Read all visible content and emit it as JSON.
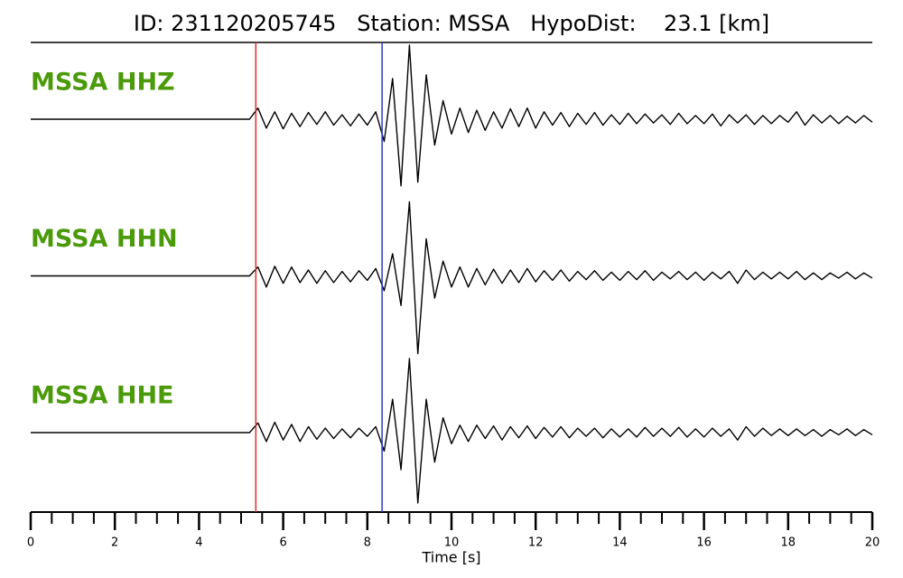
{
  "chart_data": {
    "type": "seismogram",
    "title": "ID: 231120205745   Station: MSSA   HypoDist:    23.1 [km]",
    "xlabel": "Time [s]",
    "xlim": [
      0,
      20
    ],
    "xticks": [
      0,
      2,
      4,
      6,
      8,
      10,
      12,
      14,
      16,
      18,
      20
    ],
    "xticks_minor": [
      0.5,
      1,
      1.5,
      2.5,
      3,
      3.5,
      4.5,
      5,
      5.5,
      6.5,
      7,
      7.5,
      8.5,
      9,
      9.5,
      10.5,
      11,
      11.5,
      12.5,
      13,
      13.5,
      14.5,
      15,
      15.5,
      16.5,
      17,
      17.5,
      18.5,
      19,
      19.5
    ],
    "picks": [
      {
        "value": 5.35,
        "color": "#e8262a"
      },
      {
        "value": 8.35,
        "color": "#2a3bcc"
      }
    ],
    "t0": 0,
    "dt": 0.2,
    "color": "#000000",
    "label_color": "#4b9a0a",
    "series": [
      {
        "name": "MSSA HHZ",
        "values": [
          0,
          0,
          0,
          0,
          0,
          0,
          0,
          0,
          0,
          0,
          0,
          0,
          0,
          0,
          0,
          0,
          0,
          0,
          0,
          0,
          0,
          0,
          0,
          0,
          0,
          0,
          0,
          0.15,
          -0.12,
          0.1,
          -0.13,
          0.08,
          -0.1,
          0.09,
          -0.07,
          0.1,
          -0.08,
          0.06,
          -0.09,
          0.07,
          -0.08,
          0.1,
          -0.3,
          0.55,
          -0.9,
          1,
          -0.85,
          0.6,
          -0.35,
          0.25,
          -0.2,
          0.15,
          -0.18,
          0.12,
          -0.15,
          0.1,
          -0.12,
          0.14,
          -0.1,
          0.15,
          -0.12,
          0.1,
          -0.08,
          0.09,
          -0.1,
          0.08,
          -0.07,
          0.09,
          -0.08,
          0.06,
          -0.07,
          0.08,
          -0.06,
          0.07,
          -0.05,
          0.06,
          -0.07,
          0.08,
          -0.06,
          0.05,
          -0.06,
          0.07,
          -0.09,
          0.06,
          -0.05,
          0.06,
          -0.07,
          0.05,
          -0.06,
          0.05,
          -0.04,
          0.1,
          -0.08,
          0.06,
          -0.05,
          0.05,
          -0.06,
          0.04,
          -0.05,
          0.05,
          -0.04
        ]
      },
      {
        "name": "MSSA HHN",
        "values": [
          0,
          0,
          0,
          0,
          0,
          0,
          0,
          0,
          0,
          0,
          0,
          0,
          0,
          0,
          0,
          0,
          0,
          0,
          0,
          0,
          0,
          0,
          0,
          0,
          0,
          0,
          0,
          0.12,
          -0.15,
          0.13,
          -0.1,
          0.12,
          -0.09,
          0.08,
          -0.1,
          0.07,
          -0.09,
          0.06,
          -0.08,
          0.07,
          -0.06,
          0.1,
          -0.2,
          0.3,
          -0.4,
          1,
          -1.05,
          0.5,
          -0.3,
          0.2,
          -0.15,
          0.12,
          -0.15,
          0.1,
          -0.12,
          0.09,
          -0.1,
          0.08,
          -0.09,
          0.1,
          -0.08,
          0.07,
          -0.06,
          0.08,
          -0.07,
          0.06,
          -0.05,
          0.07,
          -0.06,
          0.05,
          -0.06,
          0.06,
          -0.05,
          0.07,
          -0.06,
          0.05,
          -0.04,
          0.06,
          -0.05,
          0.05,
          -0.06,
          0.05,
          -0.04,
          0.06,
          -0.1,
          0.08,
          -0.05,
          0.05,
          -0.04,
          0.05,
          -0.04,
          0.06,
          -0.05,
          0.04,
          -0.05,
          0.04,
          -0.03,
          0.05,
          -0.04,
          0.04,
          -0.03
        ]
      },
      {
        "name": "MSSA HHE",
        "values": [
          0,
          0,
          0,
          0,
          0,
          0,
          0,
          0,
          0,
          0,
          0,
          0,
          0,
          0,
          0,
          0,
          0,
          0,
          0,
          0,
          0,
          0,
          0,
          0,
          0,
          0,
          0,
          0.13,
          -0.12,
          0.14,
          -0.1,
          0.11,
          -0.12,
          0.08,
          -0.09,
          0.06,
          -0.08,
          0.05,
          -0.07,
          0.06,
          -0.05,
          0.08,
          -0.25,
          0.45,
          -0.5,
          1,
          -0.95,
          0.45,
          -0.4,
          0.2,
          -0.15,
          0.1,
          -0.12,
          0.1,
          -0.08,
          0.09,
          -0.1,
          0.08,
          -0.07,
          0.09,
          -0.08,
          0.07,
          -0.06,
          0.08,
          -0.07,
          0.06,
          -0.05,
          0.06,
          -0.07,
          0.05,
          -0.06,
          0.05,
          -0.06,
          0.07,
          -0.05,
          0.06,
          -0.05,
          0.07,
          -0.06,
          0.05,
          -0.06,
          0.06,
          -0.05,
          0.05,
          -0.1,
          0.08,
          -0.05,
          0.06,
          -0.04,
          0.05,
          -0.04,
          0.05,
          -0.04,
          0.04,
          -0.05,
          0.04,
          -0.03,
          0.05,
          -0.04,
          0.04,
          -0.03
        ]
      }
    ]
  }
}
